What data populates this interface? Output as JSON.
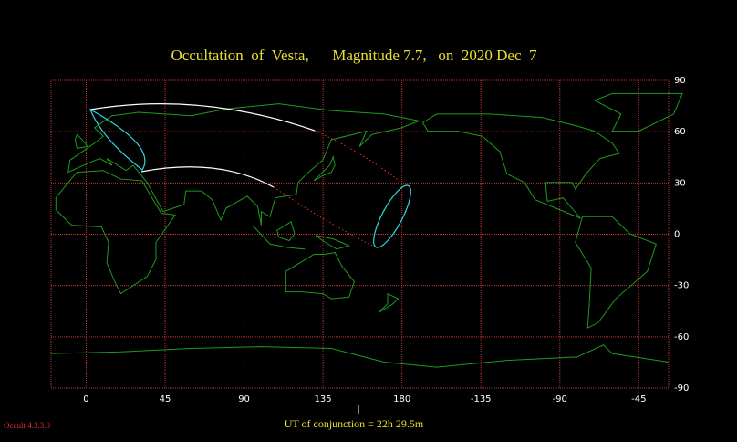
{
  "chart_data": {
    "type": "map",
    "title": "Occultation  of  Vesta,      Magnitude 7.7,   on  2020 Dec  7",
    "xlim": [
      -20,
      332
    ],
    "xticks": [
      0,
      45,
      90,
      135,
      180,
      {
        "value": 225,
        "label": "-135"
      },
      {
        "value": 270,
        "label": "-90"
      },
      {
        "value": 315,
        "label": "-45"
      }
    ],
    "ylim": [
      -90,
      90
    ],
    "yticks": [
      90,
      60,
      30,
      0,
      -30,
      -60,
      -90
    ],
    "grid": true,
    "grid_color": "#c03030",
    "coast_color": "#1f9a1f",
    "conjunction_label": "UT of conjunction = 22h 29.5m",
    "software": "Occult 4.3.3.0"
  }
}
